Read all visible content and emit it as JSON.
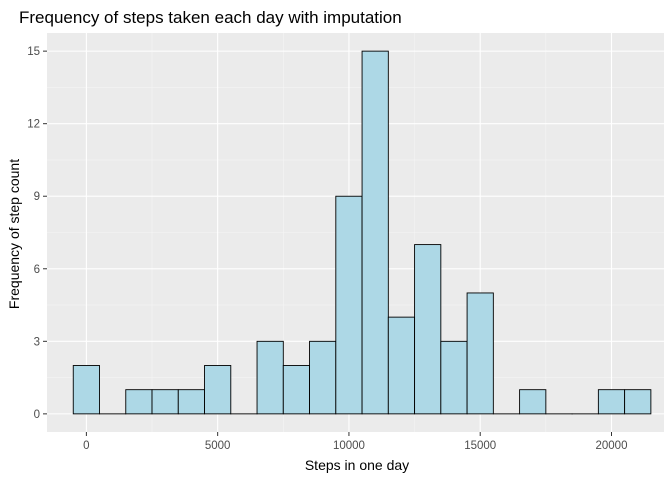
{
  "chart_data": {
    "type": "bar",
    "subtype": "histogram",
    "title": "Frequency of steps taken each day with imputation",
    "xlabel": "Steps in one day",
    "ylabel": "Frequency of step count",
    "bin_width": 1000,
    "xlim": [
      -1500,
      22000
    ],
    "ylim": [
      -0.75,
      15.75
    ],
    "x_ticks": [
      0,
      5000,
      10000,
      15000,
      20000
    ],
    "y_ticks": [
      0,
      3,
      6,
      9,
      12,
      15
    ],
    "grid": true,
    "bins": [
      {
        "center": 0,
        "count": 2
      },
      {
        "center": 1000,
        "count": 0
      },
      {
        "center": 2000,
        "count": 1
      },
      {
        "center": 3000,
        "count": 1
      },
      {
        "center": 4000,
        "count": 1
      },
      {
        "center": 5000,
        "count": 2
      },
      {
        "center": 6000,
        "count": 0
      },
      {
        "center": 7000,
        "count": 3
      },
      {
        "center": 8000,
        "count": 2
      },
      {
        "center": 9000,
        "count": 3
      },
      {
        "center": 10000,
        "count": 9
      },
      {
        "center": 11000,
        "count": 15
      },
      {
        "center": 12000,
        "count": 4
      },
      {
        "center": 13000,
        "count": 7
      },
      {
        "center": 14000,
        "count": 3
      },
      {
        "center": 15000,
        "count": 5
      },
      {
        "center": 16000,
        "count": 0
      },
      {
        "center": 17000,
        "count": 1
      },
      {
        "center": 18000,
        "count": 0
      },
      {
        "center": 19000,
        "count": 0
      },
      {
        "center": 20000,
        "count": 1
      },
      {
        "center": 21000,
        "count": 1
      }
    ],
    "colors": {
      "fill": "#add8e6",
      "outline": "#000000",
      "panel_bg": "#ebebeb",
      "grid_major": "#ffffff",
      "grid_minor": "#f5f5f5"
    }
  }
}
